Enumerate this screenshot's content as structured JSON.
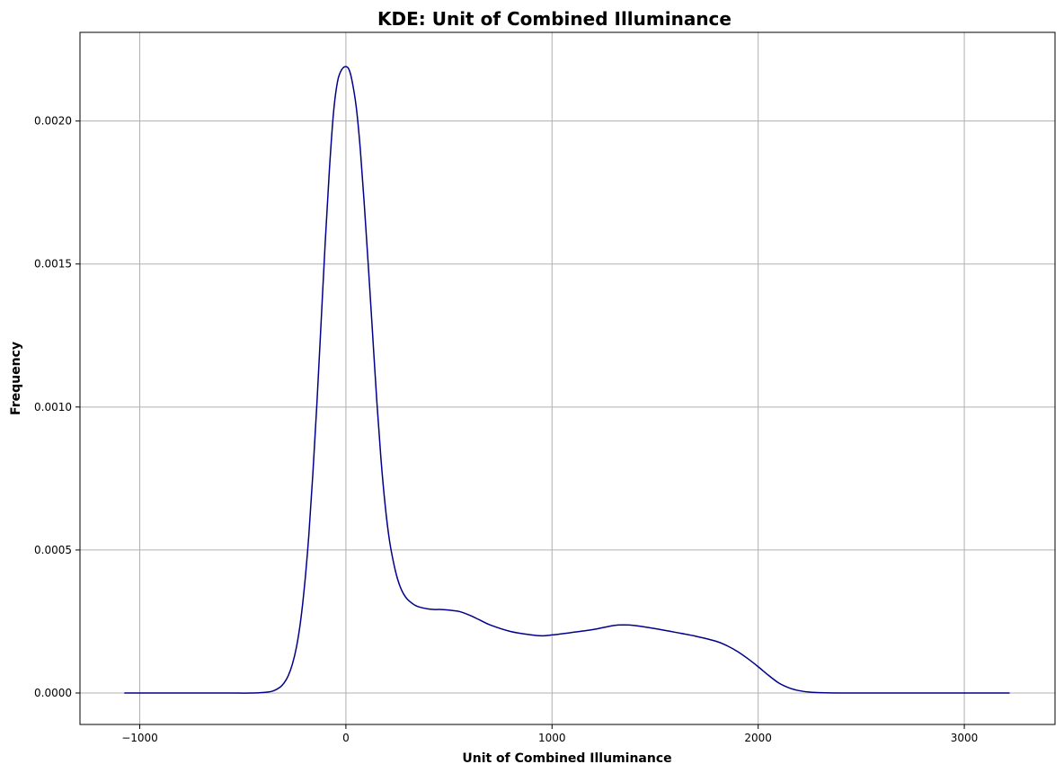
{
  "chart_data": {
    "type": "line",
    "title": "KDE: Unit of Combined Illuminance",
    "xlabel": "Unit of Combined Illuminance",
    "ylabel": "Frequency",
    "xlim": [
      -1290,
      3440
    ],
    "ylim": [
      -0.00011,
      0.00231
    ],
    "x_ticks": [
      -1000,
      0,
      1000,
      2000,
      3000
    ],
    "x_tick_labels": [
      "−1000",
      "0",
      "1000",
      "2000",
      "3000"
    ],
    "y_ticks": [
      0.0,
      0.0005,
      0.001,
      0.0015,
      0.002
    ],
    "y_tick_labels": [
      "0.0000",
      "0.0005",
      "0.0010",
      "0.0015",
      "0.0020"
    ],
    "grid": true,
    "line_color": "#00008b",
    "series": [
      {
        "x": [
          -1075,
          -800,
          -600,
          -450,
          -380,
          -350,
          -320,
          -300,
          -280,
          -260,
          -240,
          -220,
          -200,
          -180,
          -160,
          -140,
          -120,
          -100,
          -80,
          -60,
          -40,
          -20,
          0,
          15,
          30,
          50,
          70,
          90,
          110,
          130,
          150,
          170,
          190,
          210,
          230,
          250,
          270,
          290,
          310,
          340,
          370,
          400,
          430,
          460,
          500,
          550,
          600,
          650,
          700,
          800,
          900,
          950,
          1000,
          1100,
          1200,
          1300,
          1350,
          1400,
          1500,
          1600,
          1700,
          1800,
          1850,
          1900,
          1950,
          2000,
          2050,
          2100,
          2150,
          2200,
          2250,
          2300,
          2400,
          2600,
          2800,
          3000,
          3220
        ],
        "y": [
          0.0,
          0.0,
          0.0,
          0.0,
          3e-06,
          8e-06,
          2e-05,
          3.5e-05,
          6e-05,
          0.0001,
          0.00016,
          0.00025,
          0.00038,
          0.00055,
          0.00077,
          0.00102,
          0.0013,
          0.00158,
          0.00183,
          0.00203,
          0.00214,
          0.00218,
          0.00219,
          0.00218,
          0.00214,
          0.00205,
          0.0019,
          0.0017,
          0.00148,
          0.00125,
          0.00102,
          0.00082,
          0.00066,
          0.00054,
          0.00046,
          0.0004,
          0.00036,
          0.000335,
          0.00032,
          0.000305,
          0.000298,
          0.000294,
          0.000292,
          0.000292,
          0.00029,
          0.000285,
          0.000272,
          0.000255,
          0.000238,
          0.000215,
          0.000203,
          0.0002,
          0.000203,
          0.000212,
          0.000222,
          0.000236,
          0.000238,
          0.000236,
          0.000225,
          0.000212,
          0.000198,
          0.00018,
          0.000165,
          0.000145,
          0.00012,
          9.2e-05,
          6.2e-05,
          3.5e-05,
          1.8e-05,
          8e-06,
          3e-06,
          1e-06,
          0.0,
          0.0,
          0.0,
          0.0,
          0.0
        ]
      }
    ]
  }
}
